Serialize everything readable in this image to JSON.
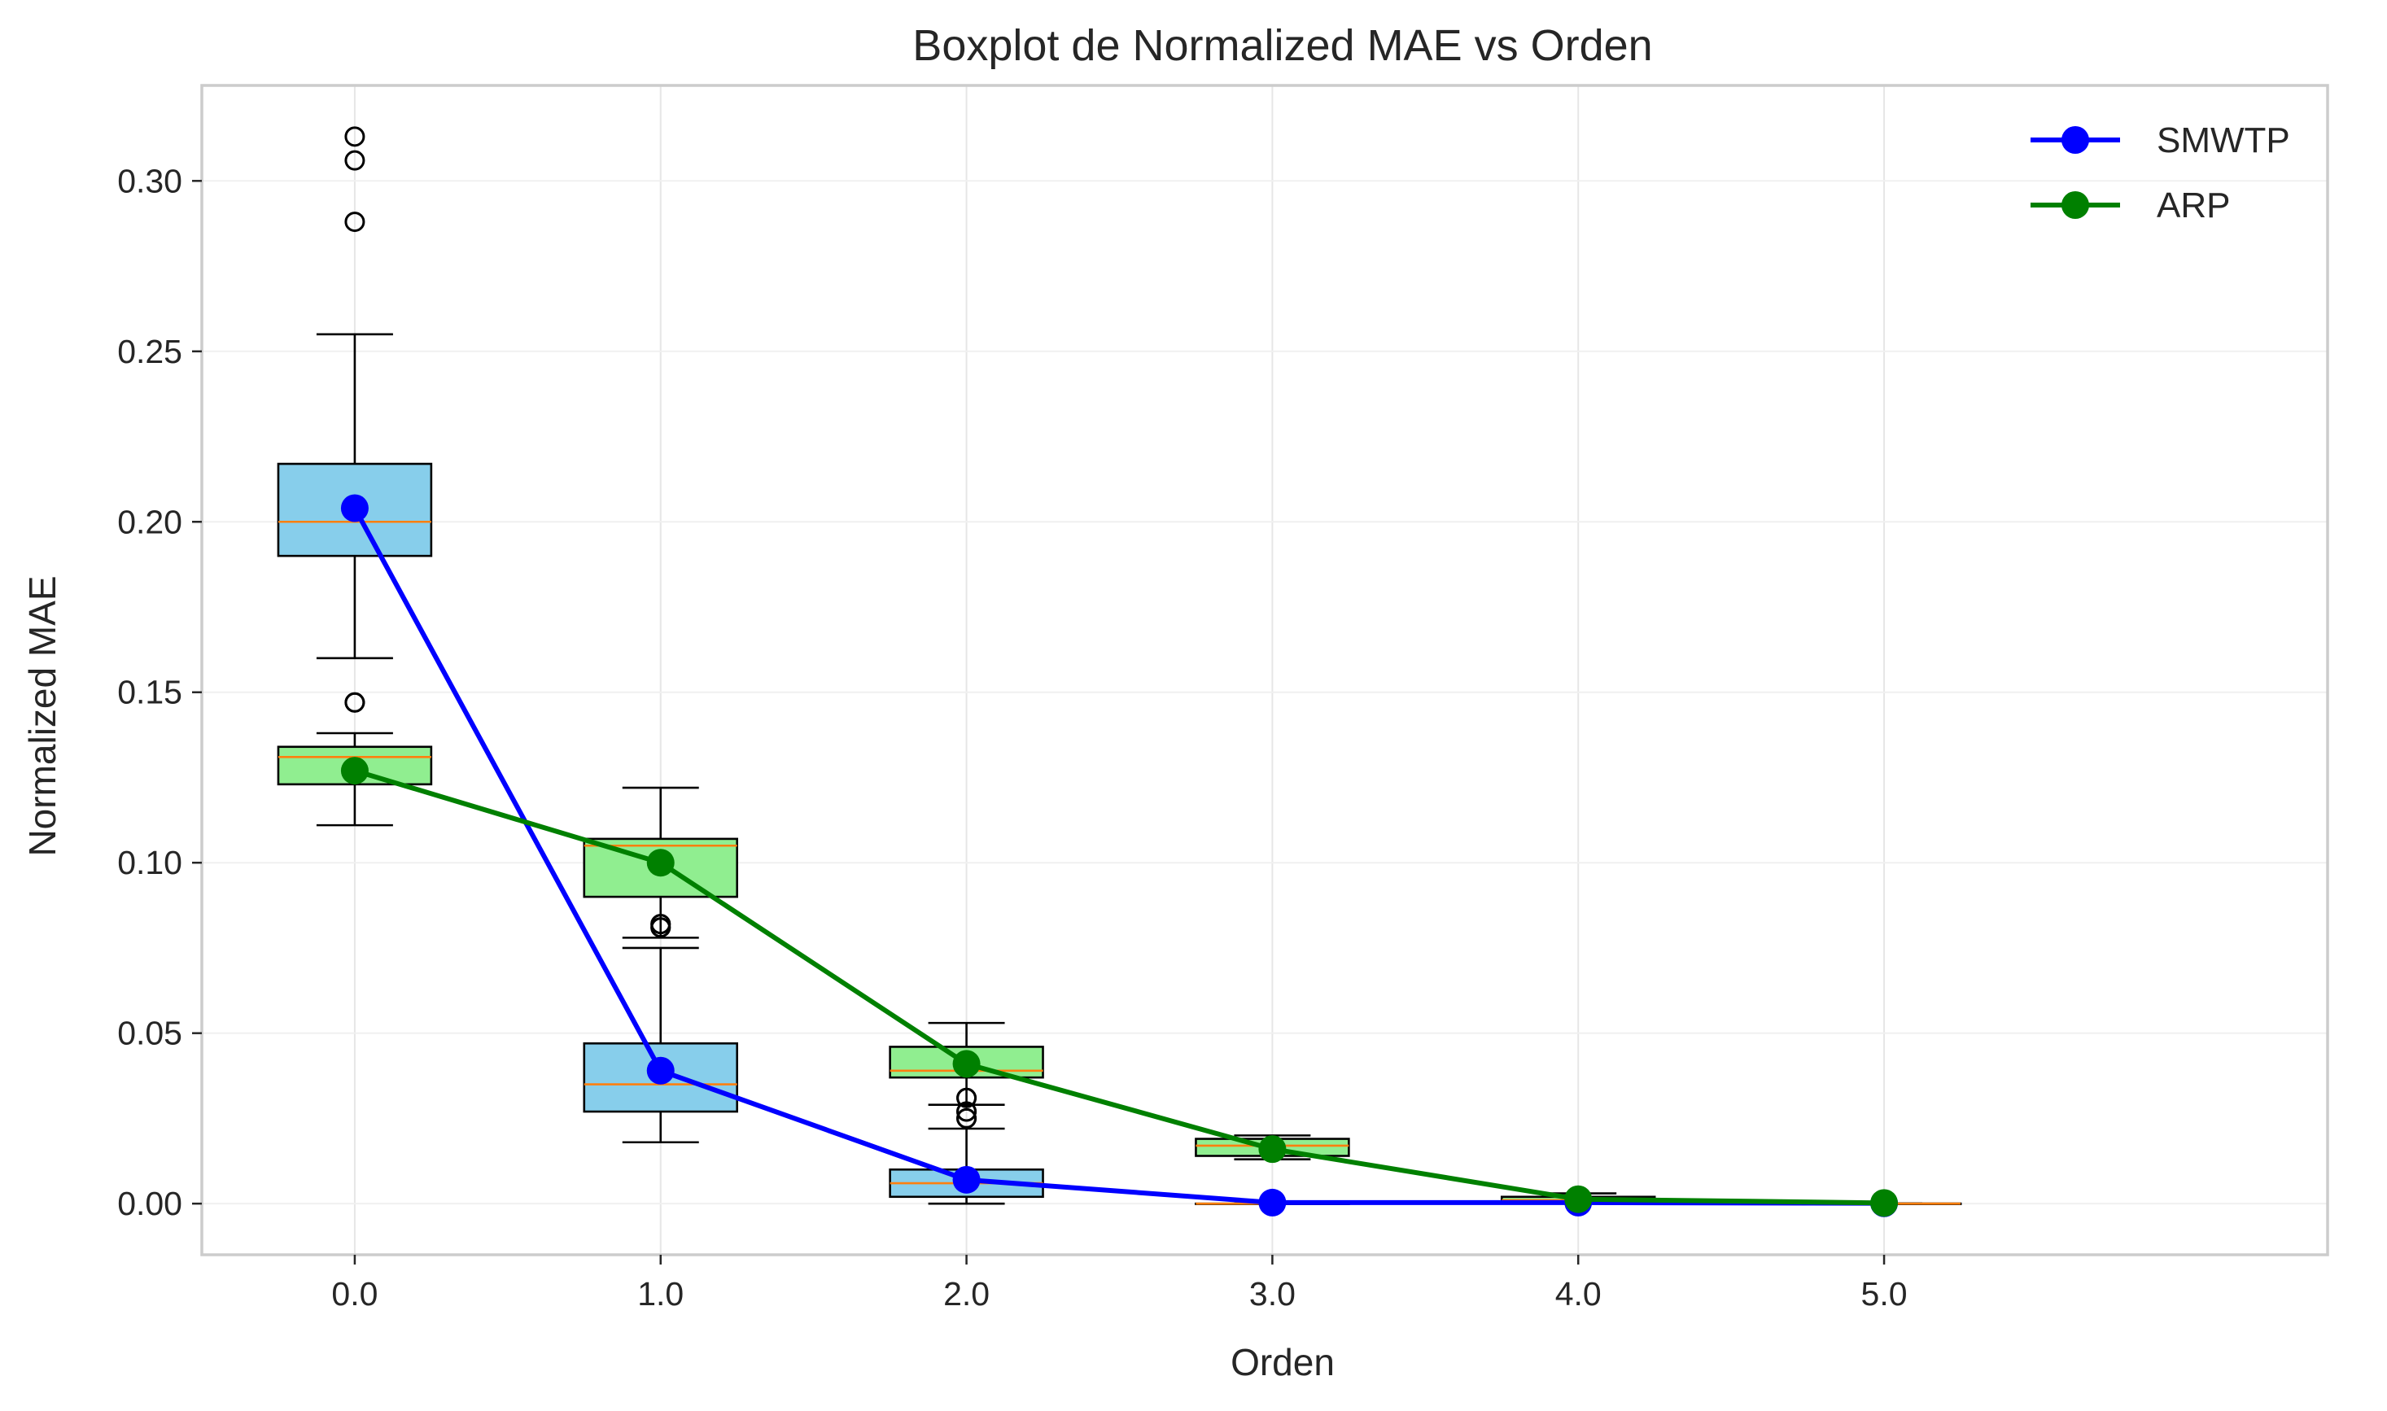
{
  "chart_data": {
    "type": "box",
    "title": "Boxplot de Normalized MAE vs Orden",
    "xlabel": "Orden",
    "ylabel": "Normalized MAE",
    "categories": [
      "0.0",
      "1.0",
      "2.0",
      "3.0",
      "4.0",
      "5.0"
    ],
    "x": [
      0,
      1,
      2,
      3,
      4,
      5
    ],
    "xlim": [
      -0.5,
      6.45
    ],
    "ylim": [
      -0.015,
      0.328
    ],
    "yticks": [
      0.0,
      0.05,
      0.1,
      0.15,
      0.2,
      0.25,
      0.3
    ],
    "ytick_labels": [
      "0.00",
      "0.05",
      "0.10",
      "0.15",
      "0.20",
      "0.25",
      "0.30"
    ],
    "grid": true,
    "legend_position": "top-right",
    "boxes": [
      {
        "group": "SMWTP",
        "fill": "#87ceeb",
        "items": [
          {
            "x": 0,
            "whislo": 0.16,
            "q1": 0.19,
            "med": 0.2,
            "q3": 0.217,
            "whishi": 0.255,
            "fliers": [
              0.147,
              0.288,
              0.306,
              0.313
            ]
          },
          {
            "x": 1,
            "whislo": 0.018,
            "q1": 0.027,
            "med": 0.035,
            "q3": 0.047,
            "whishi": 0.075,
            "fliers": [
              0.081,
              0.082
            ]
          },
          {
            "x": 2,
            "whislo": 0.0,
            "q1": 0.002,
            "med": 0.006,
            "q3": 0.01,
            "whishi": 0.022,
            "fliers": [
              0.025,
              0.027,
              0.031
            ]
          },
          {
            "x": 3,
            "whislo": 0.0,
            "q1": 0.0,
            "med": 0.0,
            "q3": 0.0,
            "whishi": 0.0,
            "fliers": []
          },
          {
            "x": 4,
            "whislo": 0.0,
            "q1": 0.0,
            "med": 0.0,
            "q3": 0.0005,
            "whishi": 0.001,
            "fliers": []
          },
          {
            "x": 5,
            "whislo": 0.0,
            "q1": 0.0,
            "med": 0.0,
            "q3": 0.0,
            "whishi": 0.0,
            "fliers": []
          }
        ]
      },
      {
        "group": "ARP",
        "fill": "#90ee90",
        "items": [
          {
            "x": 0,
            "whislo": 0.111,
            "q1": 0.123,
            "med": 0.131,
            "q3": 0.134,
            "whishi": 0.138,
            "fliers": [
              0.147
            ]
          },
          {
            "x": 1,
            "whislo": 0.078,
            "q1": 0.09,
            "med": 0.105,
            "q3": 0.107,
            "whishi": 0.122,
            "fliers": [
              0.081,
              0.082
            ]
          },
          {
            "x": 2,
            "whislo": 0.029,
            "q1": 0.037,
            "med": 0.039,
            "q3": 0.046,
            "whishi": 0.053,
            "fliers": [
              0.025,
              0.027,
              0.031
            ]
          },
          {
            "x": 3,
            "whislo": 0.013,
            "q1": 0.014,
            "med": 0.017,
            "q3": 0.019,
            "whishi": 0.02,
            "fliers": []
          },
          {
            "x": 4,
            "whislo": 0.0,
            "q1": 0.0,
            "med": 0.001,
            "q3": 0.002,
            "whishi": 0.003,
            "fliers": []
          },
          {
            "x": 5,
            "whislo": 0.0,
            "q1": 0.0,
            "med": 0.0,
            "q3": 0.0,
            "whishi": 0.0,
            "fliers": []
          }
        ]
      }
    ],
    "series": [
      {
        "name": "SMWTP",
        "color": "#0000ff",
        "x": [
          0,
          1,
          2,
          3,
          4,
          5
        ],
        "values": [
          0.204,
          0.039,
          0.007,
          0.0003,
          0.0003,
          0.0001
        ]
      },
      {
        "name": "ARP",
        "color": "#008000",
        "x": [
          0,
          1,
          2,
          3,
          4,
          5
        ],
        "values": [
          0.127,
          0.1,
          0.041,
          0.016,
          0.0013,
          0.0002
        ]
      }
    ],
    "colors": {
      "median": "#ff7f0e",
      "box_edge": "#000000",
      "grid": "#e6e6e6",
      "spine": "#cccccc"
    }
  }
}
